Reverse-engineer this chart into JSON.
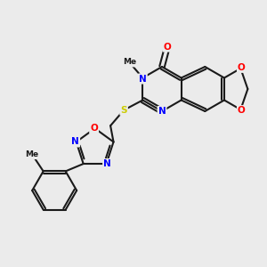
{
  "bg_color": "#ebebeb",
  "bond_color": "#1a1a1a",
  "bond_width": 1.5,
  "atom_colors": {
    "N": "#0000ff",
    "O": "#ff0000",
    "S": "#cccc00",
    "C": "#1a1a1a"
  },
  "font_size": 7.5,
  "font_size_small": 6.5
}
